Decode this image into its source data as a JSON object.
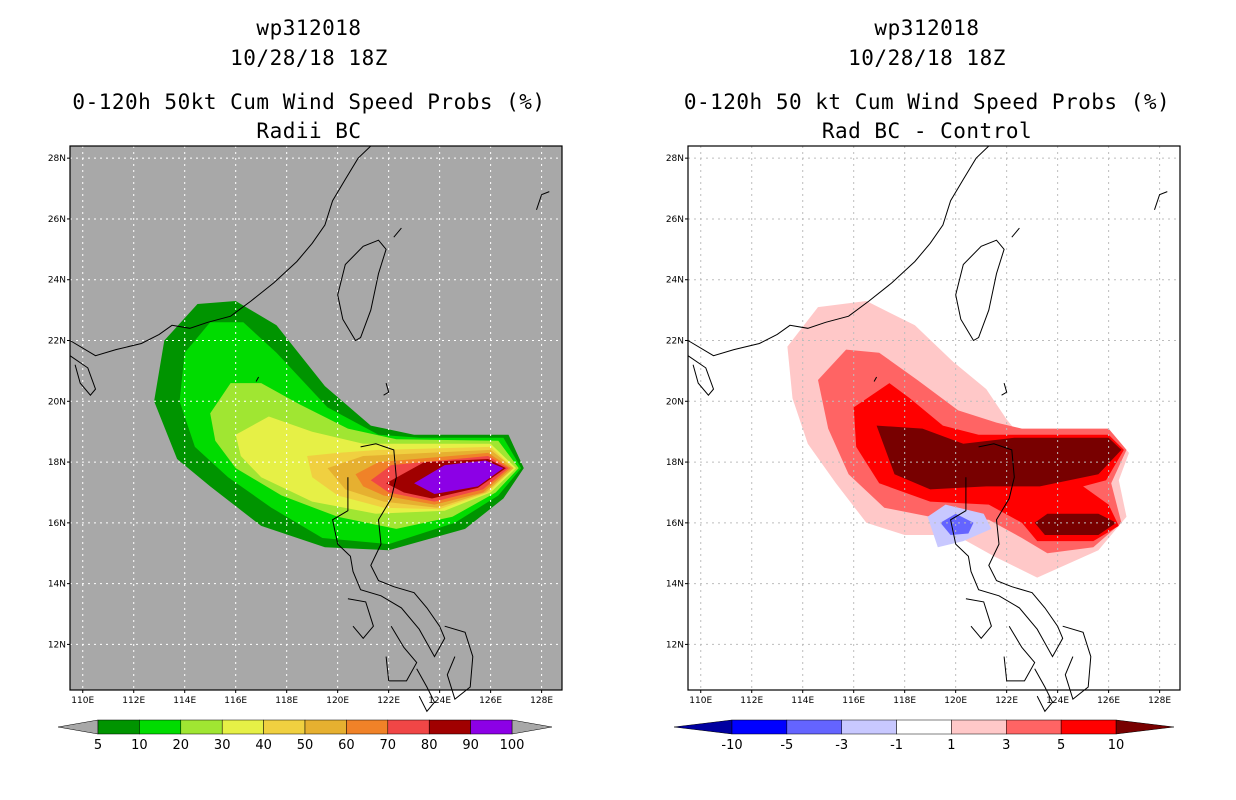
{
  "panels": [
    {
      "title_line1": "wp312018",
      "title_line2": "10/28/18 18Z",
      "title_line3": "0-120h 50kt Cum Wind Speed Probs (%)",
      "title_line4": "Radii BC"
    },
    {
      "title_line1": "wp312018",
      "title_line2": "10/28/18 18Z",
      "title_line3": "0-120h 50 kt Cum Wind Speed Probs (%)",
      "title_line4": "Rad BC - Control"
    }
  ],
  "chart_data": [
    {
      "type": "heatmap",
      "title": "0-120h 50kt Cum Wind Speed Probs (%) Radii BC",
      "x_ticks": [
        "110E",
        "112E",
        "114E",
        "116E",
        "118E",
        "120E",
        "122E",
        "124E",
        "126E",
        "128E"
      ],
      "y_ticks": [
        "28N",
        "26N",
        "24N",
        "22N",
        "20N",
        "18N",
        "16N",
        "14N",
        "12N"
      ],
      "xlim": [
        109.5,
        128.8
      ],
      "ylim": [
        10.5,
        28.4
      ],
      "background": "#a8a8a8",
      "levels": [
        5,
        10,
        20,
        30,
        40,
        50,
        60,
        70,
        80,
        90,
        100
      ],
      "colorbar_labels": [
        "5",
        "10",
        "20",
        "30",
        "40",
        "50",
        "60",
        "70",
        "80",
        "90",
        "100"
      ],
      "colors": [
        "#009400",
        "#00dc00",
        "#a0e632",
        "#e6f046",
        "#f0d040",
        "#e6b030",
        "#f08228",
        "#f04646",
        "#a00000",
        "#8c00e6"
      ]
    },
    {
      "type": "heatmap",
      "title": "0-120h 50 kt Cum Wind Speed Probs (%) Rad BC - Control",
      "x_ticks": [
        "110E",
        "112E",
        "114E",
        "116E",
        "118E",
        "120E",
        "122E",
        "124E",
        "126E",
        "128E"
      ],
      "y_ticks": [
        "28N",
        "26N",
        "24N",
        "22N",
        "20N",
        "18N",
        "16N",
        "14N",
        "12N"
      ],
      "xlim": [
        109.5,
        128.8
      ],
      "ylim": [
        10.5,
        28.4
      ],
      "background": "#ffffff",
      "levels": [
        -10,
        -5,
        -3,
        -1,
        1,
        3,
        5,
        10
      ],
      "colorbar_labels": [
        "-10",
        "-5",
        "-3",
        "-1",
        "1",
        "3",
        "5",
        "10"
      ],
      "colors": [
        "#0000a0",
        "#0000ff",
        "#6464ff",
        "#c8c8ff",
        "#ffffff",
        "#ffc8c8",
        "#ff6464",
        "#ff0000",
        "#780000"
      ]
    }
  ]
}
